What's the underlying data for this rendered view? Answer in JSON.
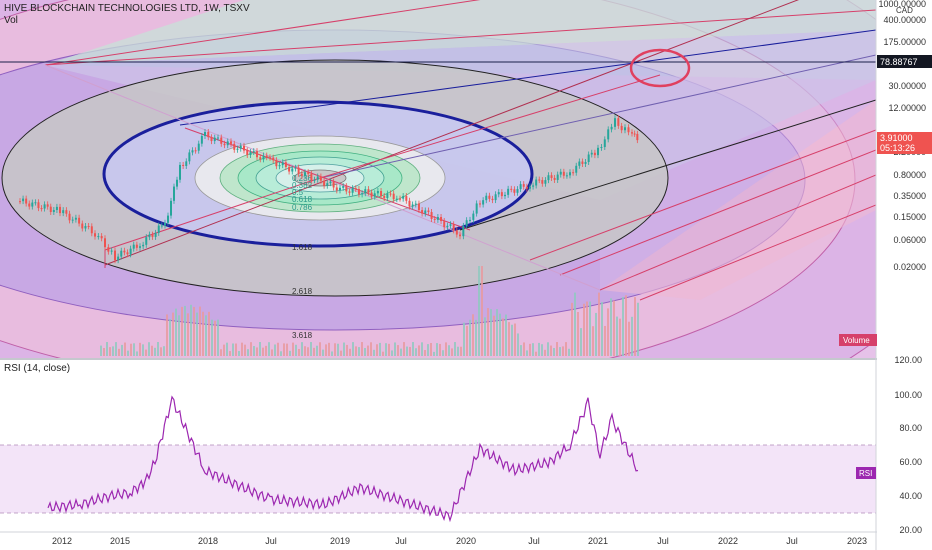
{
  "header": {
    "title": "HIVE BLOCKCHAIN TECHNOLOGIES LTD, 1W, TSXV",
    "volume_label": "Vol",
    "rsi_title": "RSI (14, close)"
  },
  "price_axis": {
    "currency": "CAD",
    "ticks": [
      "1000.00000",
      "400.00000",
      "175.00000",
      "78.88767",
      "30.00000",
      "12.00000",
      "5.00000",
      "2.20000",
      "0.80000",
      "0.35000",
      "0.15000",
      "0.06000",
      "0.02000"
    ],
    "crosshair_value": "78.88767",
    "last_price": "3.91000",
    "countdown": "05:13:26",
    "volume_badge": "Volume"
  },
  "rsi_axis": {
    "ticks": [
      "120.00",
      "100.00",
      "80.00",
      "60.00",
      "40.00",
      "20.00"
    ],
    "badge": "RSI"
  },
  "time_axis": {
    "ticks": [
      "2012",
      "2015",
      "2018",
      "Jul",
      "2019",
      "Jul",
      "2020",
      "Jul",
      "2021",
      "Jul",
      "2022",
      "Jul",
      "2023"
    ]
  },
  "fib_labels": [
    "0.236",
    "0.382",
    "0.5",
    "0.618",
    "0.786",
    "1.618",
    "2.618",
    "3.618"
  ],
  "colors": {
    "pane_border": "#b2b5be",
    "ellipse_main": "#1a1f9c",
    "red_circle": "#e0405f",
    "rsi_line": "#9c27b0",
    "candle_up": "#26a69a",
    "candle_down": "#ef5350"
  },
  "chart_data": [
    {
      "type": "line",
      "title": "HIVE BLOCKCHAIN TECHNOLOGIES LTD, 1W, TSXV",
      "y_scale": "log",
      "ylim": [
        0.02,
        1000
      ],
      "x": [
        "2012",
        "2013",
        "2014",
        "2015",
        "2016",
        "2017",
        "2017-09",
        "2018-01",
        "2018-07",
        "2019-01",
        "2019-07",
        "2019-12",
        "2020-03",
        "2020-07",
        "2020-10",
        "2021-01",
        "2021-02",
        "2021-03",
        "2021-04",
        "2021-05"
      ],
      "series": [
        {
          "values": [
            0.3,
            0.2,
            0.08,
            0.03,
            0.05,
            0.12,
            1.2,
            4.5,
            1.6,
            0.5,
            0.35,
            0.08,
            0.3,
            0.6,
            1.0,
            2.5,
            8.0,
            5.5,
            4.5,
            3.91
          ]
        }
      ]
    },
    {
      "type": "line",
      "title": "RSI (14, close)",
      "ylim": [
        20,
        120
      ],
      "bands": [
        30,
        70
      ],
      "x": [
        "2012",
        "2013",
        "2014",
        "2015",
        "2016",
        "2017",
        "2017-09",
        "2018-01",
        "2018-07",
        "2019-01",
        "2019-07",
        "2019-12",
        "2020-03",
        "2020-07",
        "2020-10",
        "2021-01",
        "2021-02",
        "2021-03",
        "2021-04",
        "2021-05"
      ],
      "series": [
        {
          "values": [
            33,
            35,
            40,
            42,
            48,
            60,
            97,
            55,
            38,
            35,
            45,
            28,
            68,
            55,
            60,
            70,
            95,
            65,
            85,
            55
          ]
        }
      ]
    }
  ]
}
